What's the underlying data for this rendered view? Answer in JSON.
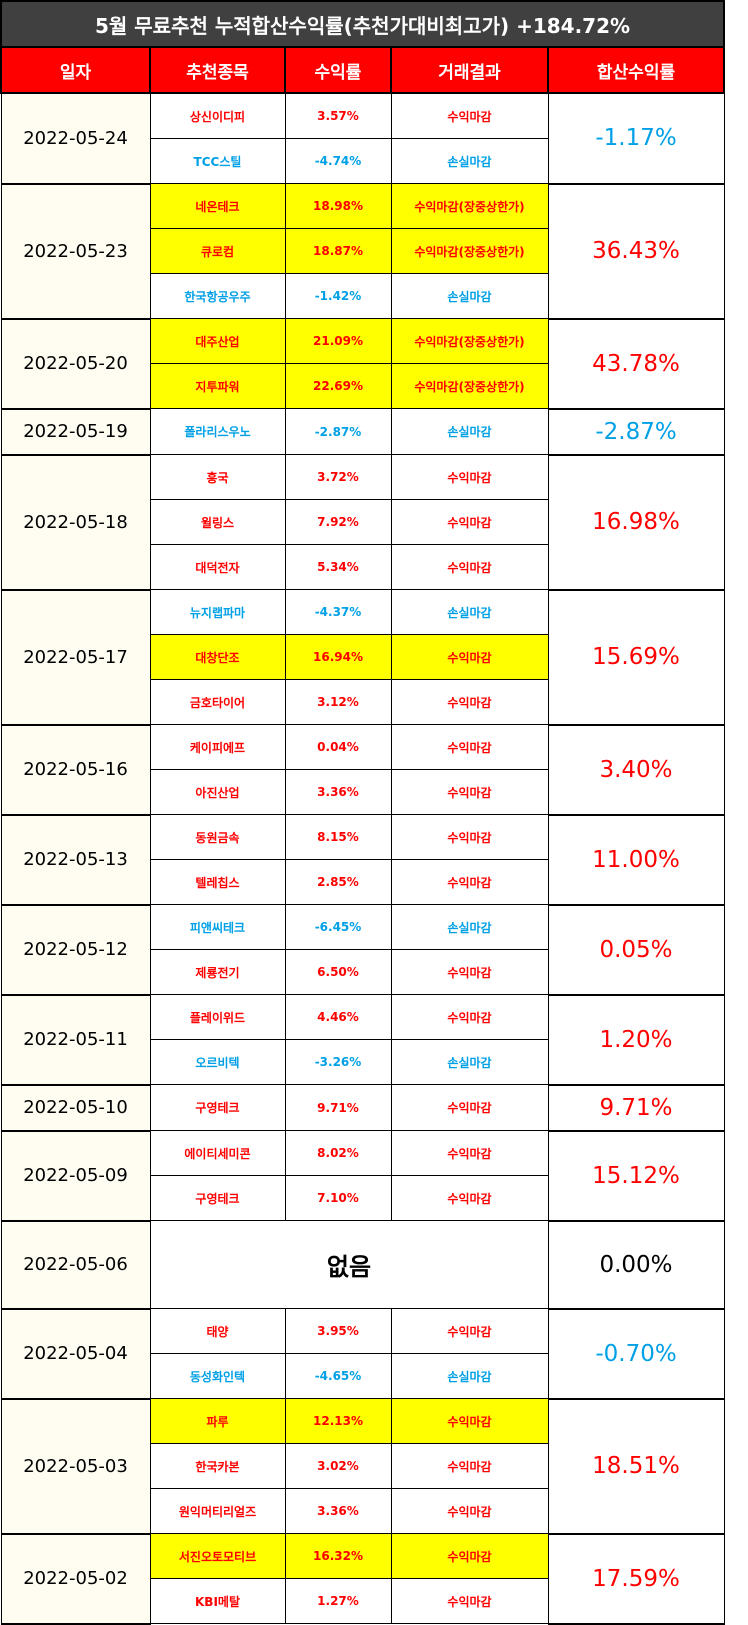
{
  "title": "5월 무료추천 누적합산수익률(추천가대비최고가) +184.72%",
  "headers": [
    "일자",
    "추천종목",
    "수익률",
    "거래결과",
    "합산수익률"
  ],
  "colors": {
    "profit": "#ff0000",
    "loss": "#00a0e6",
    "neutral": "#000000",
    "highlight": "#ffff00",
    "header_bg": "#ff0000",
    "title_bg": "#404040"
  },
  "groups": [
    {
      "date": "2022-05-24",
      "total": "-1.17%",
      "total_color": "blue",
      "rows": [
        {
          "name": "상신이디피",
          "ret": "3.57%",
          "result": "수익마감",
          "color": "red",
          "highlight": false
        },
        {
          "name": "TCC스틸",
          "ret": "-4.74%",
          "result": "손실마감",
          "color": "blue",
          "highlight": false
        }
      ]
    },
    {
      "date": "2022-05-23",
      "total": "36.43%",
      "total_color": "red",
      "rows": [
        {
          "name": "네온테크",
          "ret": "18.98%",
          "result": "수익마감(장중상한가)",
          "color": "red",
          "highlight": true
        },
        {
          "name": "큐로컴",
          "ret": "18.87%",
          "result": "수익마감(장중상한가)",
          "color": "red",
          "highlight": true
        },
        {
          "name": "한국항공우주",
          "ret": "-1.42%",
          "result": "손실마감",
          "color": "blue",
          "highlight": false
        }
      ]
    },
    {
      "date": "2022-05-20",
      "total": "43.78%",
      "total_color": "red",
      "rows": [
        {
          "name": "대주산업",
          "ret": "21.09%",
          "result": "수익마감(장중상한가)",
          "color": "red",
          "highlight": true
        },
        {
          "name": "지투파워",
          "ret": "22.69%",
          "result": "수익마감(장중상한가)",
          "color": "red",
          "highlight": true
        }
      ]
    },
    {
      "date": "2022-05-19",
      "total": "-2.87%",
      "total_color": "blue",
      "rows": [
        {
          "name": "폴라리스우노",
          "ret": "-2.87%",
          "result": "손실마감",
          "color": "blue",
          "highlight": false
        }
      ]
    },
    {
      "date": "2022-05-18",
      "total": "16.98%",
      "total_color": "red",
      "rows": [
        {
          "name": "흥국",
          "ret": "3.72%",
          "result": "수익마감",
          "color": "red",
          "highlight": false
        },
        {
          "name": "윌링스",
          "ret": "7.92%",
          "result": "수익마감",
          "color": "red",
          "highlight": false
        },
        {
          "name": "대덕전자",
          "ret": "5.34%",
          "result": "수익마감",
          "color": "red",
          "highlight": false
        }
      ]
    },
    {
      "date": "2022-05-17",
      "total": "15.69%",
      "total_color": "red",
      "rows": [
        {
          "name": "뉴지랩파마",
          "ret": "-4.37%",
          "result": "손실마감",
          "color": "blue",
          "highlight": false
        },
        {
          "name": "대창단조",
          "ret": "16.94%",
          "result": "수익마감",
          "color": "red",
          "highlight": true
        },
        {
          "name": "금호타이어",
          "ret": "3.12%",
          "result": "수익마감",
          "color": "red",
          "highlight": false
        }
      ]
    },
    {
      "date": "2022-05-16",
      "total": "3.40%",
      "total_color": "red",
      "rows": [
        {
          "name": "케이피에프",
          "ret": "0.04%",
          "result": "수익마감",
          "color": "red",
          "highlight": false
        },
        {
          "name": "아진산업",
          "ret": "3.36%",
          "result": "수익마감",
          "color": "red",
          "highlight": false
        }
      ]
    },
    {
      "date": "2022-05-13",
      "total": "11.00%",
      "total_color": "red",
      "rows": [
        {
          "name": "동원금속",
          "ret": "8.15%",
          "result": "수익마감",
          "color": "red",
          "highlight": false
        },
        {
          "name": "텔레칩스",
          "ret": "2.85%",
          "result": "수익마감",
          "color": "red",
          "highlight": false
        }
      ]
    },
    {
      "date": "2022-05-12",
      "total": "0.05%",
      "total_color": "red",
      "rows": [
        {
          "name": "피앤씨테크",
          "ret": "-6.45%",
          "result": "손실마감",
          "color": "blue",
          "highlight": false
        },
        {
          "name": "제룡전기",
          "ret": "6.50%",
          "result": "수익마감",
          "color": "red",
          "highlight": false
        }
      ]
    },
    {
      "date": "2022-05-11",
      "total": "1.20%",
      "total_color": "red",
      "rows": [
        {
          "name": "플레이위드",
          "ret": "4.46%",
          "result": "수익마감",
          "color": "red",
          "highlight": false
        },
        {
          "name": "오르비텍",
          "ret": "-3.26%",
          "result": "손실마감",
          "color": "blue",
          "highlight": false
        }
      ]
    },
    {
      "date": "2022-05-10",
      "total": "9.71%",
      "total_color": "red",
      "rows": [
        {
          "name": "구영테크",
          "ret": "9.71%",
          "result": "수익마감",
          "color": "red",
          "highlight": false
        }
      ]
    },
    {
      "date": "2022-05-09",
      "total": "15.12%",
      "total_color": "red",
      "rows": [
        {
          "name": "에이티세미콘",
          "ret": "8.02%",
          "result": "수익마감",
          "color": "red",
          "highlight": false
        },
        {
          "name": "구영테크",
          "ret": "7.10%",
          "result": "수익마감",
          "color": "red",
          "highlight": false
        }
      ]
    },
    {
      "date": "2022-05-06",
      "total": "0.00%",
      "total_color": "black",
      "none": "없음",
      "rows": []
    },
    {
      "date": "2022-05-04",
      "total": "-0.70%",
      "total_color": "blue",
      "rows": [
        {
          "name": "태양",
          "ret": "3.95%",
          "result": "수익마감",
          "color": "red",
          "highlight": false
        },
        {
          "name": "동성화인텍",
          "ret": "-4.65%",
          "result": "손실마감",
          "color": "blue",
          "highlight": false
        }
      ]
    },
    {
      "date": "2022-05-03",
      "total": "18.51%",
      "total_color": "red",
      "rows": [
        {
          "name": "파루",
          "ret": "12.13%",
          "result": "수익마감",
          "color": "red",
          "highlight": true
        },
        {
          "name": "한국카본",
          "ret": "3.02%",
          "result": "수익마감",
          "color": "red",
          "highlight": false
        },
        {
          "name": "원익머티리얼즈",
          "ret": "3.36%",
          "result": "수익마감",
          "color": "red",
          "highlight": false
        }
      ]
    },
    {
      "date": "2022-05-02",
      "total": "17.59%",
      "total_color": "red",
      "rows": [
        {
          "name": "서진오토모티브",
          "ret": "16.32%",
          "result": "수익마감",
          "color": "red",
          "highlight": true
        },
        {
          "name": "KBI메탈",
          "ret": "1.27%",
          "result": "수익마감",
          "color": "red",
          "highlight": false
        }
      ]
    }
  ]
}
